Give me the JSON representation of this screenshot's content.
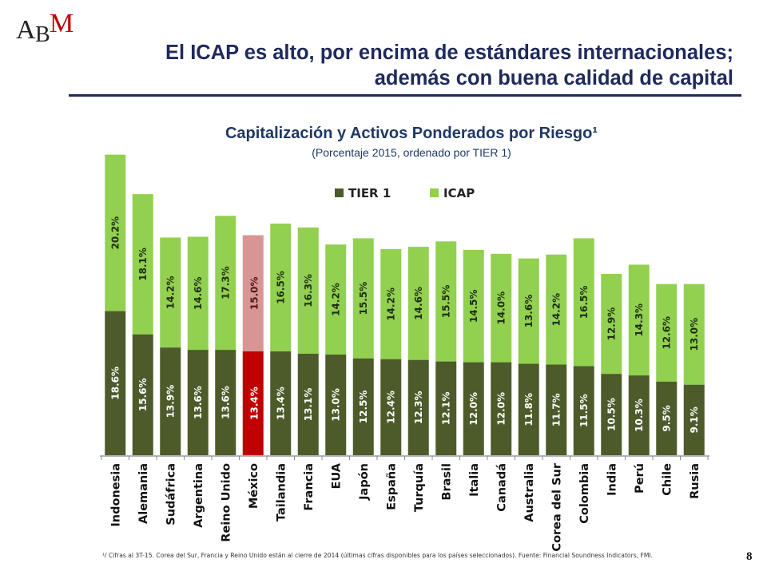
{
  "logo": {
    "text": "ABM"
  },
  "header": {
    "title_line1": "El ICAP es alto, por encima de estándares internacionales;",
    "title_line2": "además con buena calidad de capital"
  },
  "chart_data": {
    "type": "bar",
    "stacked": true,
    "title": "Capitalización y Activos Ponderados por Riesgo¹",
    "subtitle": "(Porcentaje 2015, ordenado por TIER 1)",
    "categories": [
      "Indonesia",
      "Alemania",
      "Sudáfrica",
      "Argentina",
      "Reino Unido",
      "México",
      "Tailandia",
      "Francia",
      "EUA",
      "Japón",
      "España",
      "Turquía",
      "Brasil",
      "Italia",
      "Canadá",
      "Australia",
      "Corea del Sur",
      "Colombia",
      "India",
      "Perú",
      "Chile",
      "Rusia"
    ],
    "series": [
      {
        "name": "TIER 1",
        "color": "#4d5b2a",
        "values": [
          18.6,
          15.6,
          13.9,
          13.6,
          13.6,
          13.4,
          13.4,
          13.1,
          13.0,
          12.5,
          12.4,
          12.3,
          12.1,
          12.0,
          12.0,
          11.8,
          11.7,
          11.5,
          10.5,
          10.3,
          9.5,
          9.1
        ]
      },
      {
        "name": "ICAP",
        "color": "#92d050",
        "values": [
          20.2,
          18.1,
          14.2,
          14.6,
          17.3,
          15.0,
          16.5,
          16.3,
          14.2,
          15.5,
          14.2,
          14.6,
          15.5,
          14.5,
          14.0,
          13.6,
          14.2,
          16.5,
          12.9,
          14.3,
          12.6,
          13.0
        ]
      }
    ],
    "highlight": {
      "category": "México",
      "tier1_color": "#c00000",
      "icap_color": "#d99594"
    },
    "ylim": [
      0,
      37
    ],
    "grid": false,
    "legend": "top-center"
  },
  "footnote": "¹/ Cifras al 3T-15. Corea del Sur, Francia y Reino Unido están al cierre de 2014 (últimas cifras disponibles para los países seleccionados). Fuente: Financial Soundness Indicators, FMI.",
  "page_number": "8"
}
